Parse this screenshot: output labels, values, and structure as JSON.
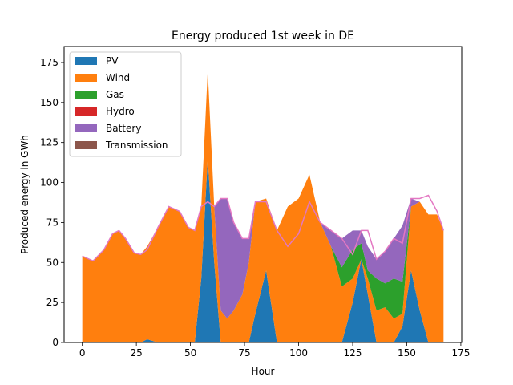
{
  "chart_data": {
    "type": "area",
    "title": "Energy produced 1st week in DE",
    "xlabel": "Hour",
    "ylabel": "Produced energy in GWh",
    "xlim": [
      -8.4,
      175.4
    ],
    "ylim": [
      0,
      185
    ],
    "xticks": [
      0,
      25,
      50,
      75,
      100,
      125,
      150,
      175
    ],
    "yticks": [
      0,
      25,
      50,
      75,
      100,
      125,
      150,
      175
    ],
    "legend_position": "top-left",
    "legend": [
      {
        "name": "PV",
        "color": "#1f77b4"
      },
      {
        "name": "Wind",
        "color": "#ff7f0e"
      },
      {
        "name": "Gas",
        "color": "#2ca02c"
      },
      {
        "name": "Hydro",
        "color": "#d62728"
      },
      {
        "name": "Battery",
        "color": "#9467bd"
      },
      {
        "name": "Transmission",
        "color": "#8c564b"
      }
    ],
    "demand_line_color": "#e377c2",
    "x": [
      0,
      5,
      10,
      14,
      17,
      20,
      24,
      27,
      30,
      35,
      40,
      45,
      49,
      52,
      55,
      58,
      61,
      64,
      67,
      70,
      74,
      77,
      80,
      85,
      90,
      95,
      100,
      105,
      110,
      115,
      120,
      125,
      129,
      132,
      136,
      140,
      144,
      148,
      152,
      156,
      160,
      164,
      167
    ],
    "series": [
      {
        "name": "PV",
        "values": [
          0,
          0,
          0,
          0,
          0,
          0,
          0,
          0,
          2,
          0,
          0,
          0,
          0,
          0,
          40,
          115,
          50,
          0,
          0,
          0,
          0,
          0,
          18,
          45,
          0,
          0,
          0,
          0,
          0,
          0,
          0,
          25,
          52,
          30,
          0,
          0,
          0,
          10,
          45,
          20,
          0,
          0,
          0
        ]
      },
      {
        "name": "Wind",
        "values": [
          54,
          51,
          58,
          68,
          70,
          65,
          56,
          55,
          58,
          72,
          85,
          82,
          72,
          70,
          45,
          55,
          35,
          20,
          15,
          20,
          30,
          50,
          70,
          45,
          70,
          85,
          90,
          105,
          75,
          60,
          35,
          15,
          0,
          10,
          20,
          22,
          15,
          8,
          40,
          68,
          80,
          80,
          70
        ]
      },
      {
        "name": "Gas",
        "values": [
          0,
          0,
          0,
          0,
          0,
          0,
          0,
          0,
          0,
          0,
          0,
          0,
          0,
          0,
          0,
          0,
          0,
          0,
          0,
          0,
          0,
          0,
          0,
          0,
          0,
          0,
          0,
          0,
          0,
          0,
          12,
          18,
          10,
          5,
          20,
          15,
          25,
          20,
          0,
          0,
          0,
          0,
          0
        ]
      },
      {
        "name": "Hydro",
        "values": [
          0,
          0,
          0,
          0,
          0,
          0,
          0,
          0,
          0,
          0,
          0,
          0,
          0,
          0,
          0,
          0,
          0,
          0,
          0,
          0,
          0,
          0,
          0,
          0,
          0,
          0,
          0,
          0,
          0,
          0,
          0,
          0,
          0,
          0,
          0,
          0,
          0,
          0,
          0,
          0,
          0,
          0,
          0
        ]
      },
      {
        "name": "Battery",
        "values": [
          0,
          0,
          0,
          0,
          0,
          0,
          0,
          0,
          0,
          0,
          0,
          0,
          0,
          0,
          0,
          0,
          0,
          70,
          75,
          55,
          35,
          15,
          0,
          0,
          0,
          0,
          0,
          0,
          0,
          10,
          18,
          12,
          8,
          15,
          12,
          20,
          25,
          35,
          5,
          0,
          0,
          0,
          0
        ]
      },
      {
        "name": "Transmission",
        "values": [
          0,
          0,
          0,
          0,
          0,
          0,
          0,
          0,
          0,
          0,
          0,
          0,
          0,
          0,
          0,
          0,
          0,
          0,
          0,
          0,
          0,
          0,
          0,
          0,
          0,
          0,
          0,
          0,
          0,
          0,
          0,
          0,
          0,
          0,
          0,
          0,
          0,
          0,
          0,
          0,
          0,
          0,
          0
        ]
      }
    ],
    "demand": [
      54,
      51,
      58,
      68,
      70,
      65,
      56,
      55,
      58,
      72,
      85,
      82,
      72,
      70,
      85,
      88,
      85,
      90,
      90,
      75,
      65,
      65,
      88,
      88,
      70,
      60,
      68,
      88,
      75,
      70,
      65,
      55,
      70,
      70,
      52,
      57,
      65,
      62,
      90,
      90,
      92,
      82,
      70
    ]
  }
}
